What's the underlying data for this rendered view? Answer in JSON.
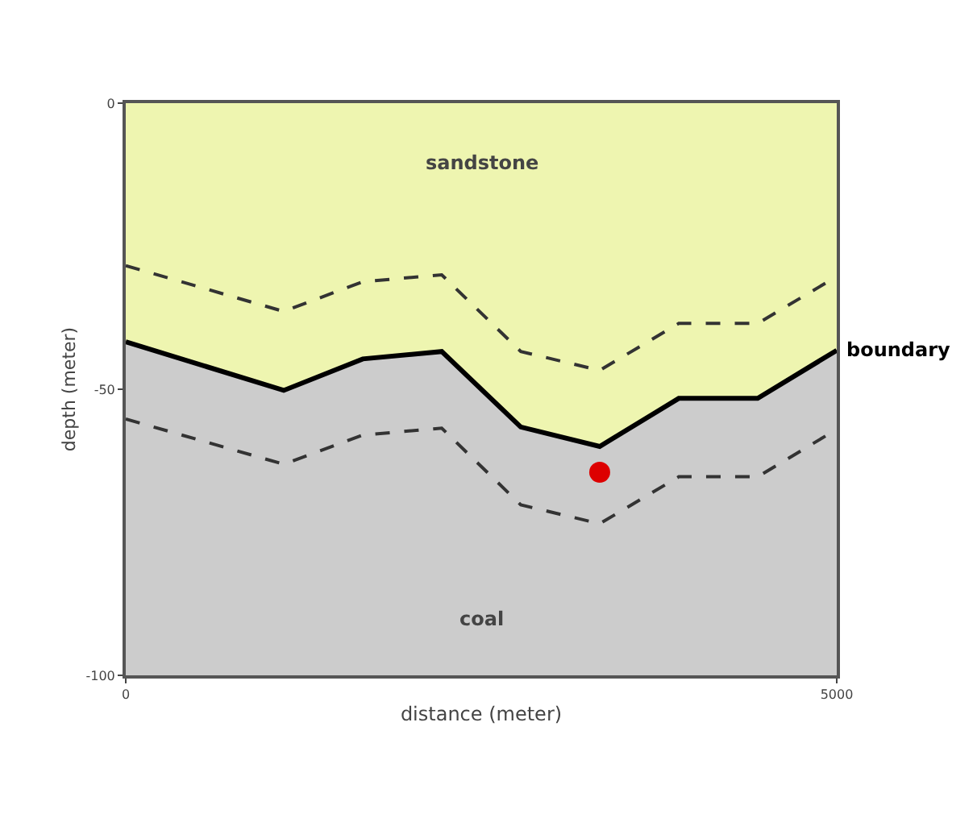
{
  "chart_data": {
    "type": "line",
    "xlabel": "distance (meter)",
    "ylabel": "depth (meter)",
    "x": [
      0,
      1111,
      1667,
      2222,
      2778,
      3333,
      3889,
      4444,
      5000
    ],
    "bands": [
      {
        "axis": "y",
        "from": -100,
        "to": 0,
        "color": "#cccccc",
        "label": "coal"
      }
    ],
    "series": [
      {
        "name": "sandstone",
        "type": "area",
        "color": "#eef5b0",
        "line_style": "solid",
        "values": [
          -41.7,
          -50.2,
          -44.7,
          -43.4,
          -56.6,
          -60.0,
          -51.6,
          -51.6,
          -43.2
        ]
      },
      {
        "color": "#333333",
        "line_style": "dashed",
        "values": [
          -28.4,
          -36.4,
          -31.2,
          -30.0,
          -43.4,
          -46.7,
          -38.5,
          -38.5,
          -30.3
        ]
      },
      {
        "color": "#333333",
        "line_style": "dashed",
        "values": [
          -55.2,
          -63.1,
          -58.0,
          -56.8,
          -70.2,
          -73.5,
          -65.3,
          -65.3,
          -57.0
        ]
      },
      {
        "type": "scatter",
        "color": "#dd0000",
        "marker": "circle",
        "x": [
          3333
        ],
        "values": [
          -64.5
        ]
      }
    ],
    "annotations": [
      {
        "text": "boundary",
        "x": 5000,
        "y": -43.2
      }
    ],
    "xlim": [
      0,
      5000
    ],
    "xticks": [
      0,
      5000
    ],
    "ylim": [
      -100,
      0
    ],
    "yticks": [
      0,
      -50,
      -100
    ],
    "grid": false
  }
}
